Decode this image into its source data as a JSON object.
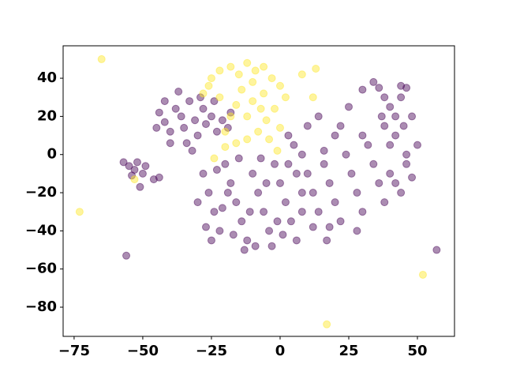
{
  "chart_data": {
    "type": "scatter",
    "xlim": [
      -79,
      63.5
    ],
    "ylim": [
      -95.3,
      57
    ],
    "xticks": [
      {
        "value": -75,
        "label": "−75"
      },
      {
        "value": -50,
        "label": "−50"
      },
      {
        "value": -25,
        "label": "−25"
      },
      0,
      25,
      50
    ],
    "yticks": [
      {
        "value": -80,
        "label": "−80"
      },
      {
        "value": -60,
        "label": "−60"
      },
      {
        "value": -40,
        "label": "−40"
      },
      {
        "value": -20,
        "label": "−20"
      },
      0,
      20,
      40
    ],
    "alpha": 0.45,
    "series": [
      {
        "color": "#440154",
        "x": [
          -57,
          -55,
          -53,
          -52,
          -50,
          -54,
          -49,
          -46,
          -44,
          -51,
          -44,
          -42,
          -40,
          -38,
          -36,
          -35,
          -33,
          -31,
          -30,
          -28,
          -27,
          -25,
          -23,
          -21,
          -19,
          -40,
          -34,
          -42,
          -37,
          -29,
          -24,
          -18,
          -45,
          -32,
          -28,
          -26,
          -24,
          -22,
          -20,
          -18,
          -16,
          -14,
          -12,
          -10,
          -8,
          -6,
          -4,
          -2,
          0,
          2,
          4,
          6,
          -30,
          -27,
          -21,
          -15,
          -13,
          -9,
          -3,
          1,
          -17,
          -25,
          -11,
          -7,
          -19,
          -23,
          8,
          3,
          -1,
          -5,
          5,
          3,
          8,
          10,
          12,
          14,
          16,
          18,
          20,
          22,
          24,
          26,
          28,
          30,
          32,
          34,
          36,
          38,
          10,
          14,
          20,
          25,
          18,
          12,
          28,
          30,
          22,
          6,
          40,
          44,
          46,
          42,
          48,
          16,
          8,
          36,
          38,
          40,
          42,
          44,
          46,
          38,
          42,
          45,
          48,
          50,
          40,
          46,
          34,
          44,
          37,
          30,
          -56,
          57,
          17
        ],
        "y": [
          -4,
          -6,
          -8,
          -4,
          -10,
          -11,
          -6,
          -13,
          -12,
          -17,
          22,
          17,
          12,
          24,
          20,
          14,
          28,
          18,
          10,
          24,
          16,
          20,
          12,
          18,
          14,
          6,
          6,
          28,
          33,
          30,
          28,
          22,
          14,
          2,
          -10,
          -20,
          -30,
          -40,
          -5,
          -15,
          -25,
          -35,
          -45,
          -10,
          -20,
          -30,
          -40,
          -5,
          -15,
          -25,
          -35,
          -45,
          -25,
          -38,
          -28,
          -2,
          -50,
          -48,
          -48,
          -42,
          -42,
          -45,
          -30,
          -2,
          -20,
          -8,
          -30,
          -5,
          -35,
          -15,
          5,
          10,
          0,
          -10,
          -20,
          -30,
          -5,
          -15,
          -25,
          -35,
          0,
          -10,
          -20,
          -30,
          5,
          -5,
          -15,
          -25,
          15,
          20,
          10,
          25,
          -38,
          -38,
          -40,
          10,
          15,
          -10,
          -10,
          -20,
          -5,
          -15,
          -12,
          2,
          -20,
          35,
          30,
          25,
          20,
          30,
          35,
          15,
          10,
          15,
          20,
          5,
          5,
          0,
          38,
          36,
          20,
          34,
          -53,
          -50,
          -45
        ]
      },
      {
        "color": "#fde725",
        "x": [
          -25,
          -22,
          -18,
          -15,
          -12,
          -9,
          -6,
          -3,
          0,
          2,
          -2,
          -5,
          -8,
          -12,
          -16,
          -20,
          -18,
          -22,
          -26,
          -14,
          -10,
          -6,
          -12,
          -16,
          -4,
          0,
          -20,
          -24,
          8,
          -28,
          -10,
          -7,
          -1,
          13,
          -65,
          -73,
          52,
          17,
          -53,
          12
        ],
        "y": [
          40,
          44,
          46,
          42,
          48,
          44,
          46,
          40,
          36,
          30,
          24,
          18,
          12,
          8,
          6,
          12,
          20,
          30,
          36,
          34,
          28,
          32,
          20,
          26,
          8,
          14,
          4,
          -2,
          42,
          32,
          38,
          24,
          2,
          45,
          50,
          -30,
          -63,
          -89,
          -13,
          30
        ]
      }
    ]
  }
}
